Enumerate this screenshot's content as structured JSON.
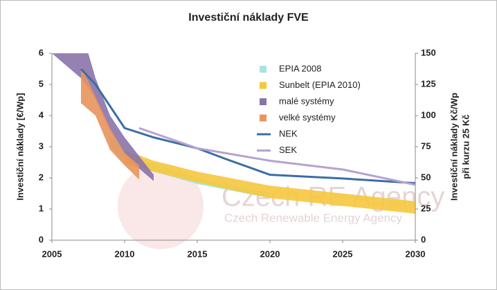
{
  "chart_data": {
    "type": "line",
    "title": "Investiční náklady FVE",
    "ylabel": "Investiční náklady [€/Wp]",
    "y2label": [
      "Investiční náklady Kč/Wp",
      "při kurzu 25 Kč"
    ],
    "watermark": [
      "Czech RE Agency",
      "Czech Renewable Energy Agency"
    ],
    "xlim": [
      2005,
      2030
    ],
    "xticks": [
      2005,
      2010,
      2015,
      2020,
      2025,
      2030
    ],
    "ylim": [
      0,
      6
    ],
    "yticks": [
      0,
      1,
      2,
      3,
      4,
      5,
      6
    ],
    "y2lim": [
      0,
      150
    ],
    "y2ticks": [
      0,
      25,
      50,
      75,
      100,
      125,
      150
    ],
    "legend": "top",
    "series": [
      {
        "name": "EPIA 2008",
        "type": "band",
        "color": "#a8e4df",
        "x": [
          2009,
          2010,
          2012,
          2015,
          2020
        ],
        "high": [
          3.35,
          2.85,
          2.45,
          2.0,
          1.5
        ],
        "low": [
          3.0,
          2.6,
          2.2,
          1.8,
          1.35
        ]
      },
      {
        "name": "Sunbelt (EPIA 2010)",
        "type": "band",
        "color": "#f6c83e",
        "x": [
          2010,
          2012,
          2015,
          2020,
          2025,
          2030
        ],
        "high": [
          2.9,
          2.55,
          2.2,
          1.75,
          1.5,
          1.25
        ],
        "low": [
          2.45,
          2.2,
          1.85,
          1.35,
          1.1,
          0.85
        ]
      },
      {
        "name": "malé systémy",
        "type": "band",
        "color": "#8a73aa",
        "x": [
          2005,
          2007,
          2007.5,
          2008,
          2009,
          2010,
          2011,
          2012
        ],
        "high": [
          6,
          6,
          6,
          5.2,
          4.0,
          3.3,
          2.7,
          2.1
        ],
        "low": [
          6,
          5.2,
          4.9,
          4.5,
          3.5,
          2.8,
          2.3,
          1.9
        ]
      },
      {
        "name": "velké systémy",
        "type": "band",
        "color": "#e8945c",
        "x": [
          2007,
          2008,
          2009,
          2010,
          2011
        ],
        "high": [
          5.6,
          4.6,
          3.6,
          2.8,
          2.4
        ],
        "low": [
          4.4,
          4.0,
          2.9,
          2.4,
          1.95
        ]
      },
      {
        "name": "NEK",
        "type": "line",
        "color": "#3b6da6",
        "x": [
          2007,
          2008,
          2009,
          2010,
          2012,
          2015,
          2017,
          2020,
          2025,
          2030
        ],
        "values": [
          5.5,
          5.0,
          4.3,
          3.6,
          3.3,
          2.95,
          2.6,
          2.1,
          1.98,
          1.83
        ]
      },
      {
        "name": "SEK",
        "type": "line",
        "color": "#b6a2cf",
        "x": [
          2011,
          2015,
          2020,
          2025,
          2030
        ],
        "values": [
          3.6,
          2.95,
          2.55,
          2.27,
          1.78
        ]
      }
    ]
  }
}
